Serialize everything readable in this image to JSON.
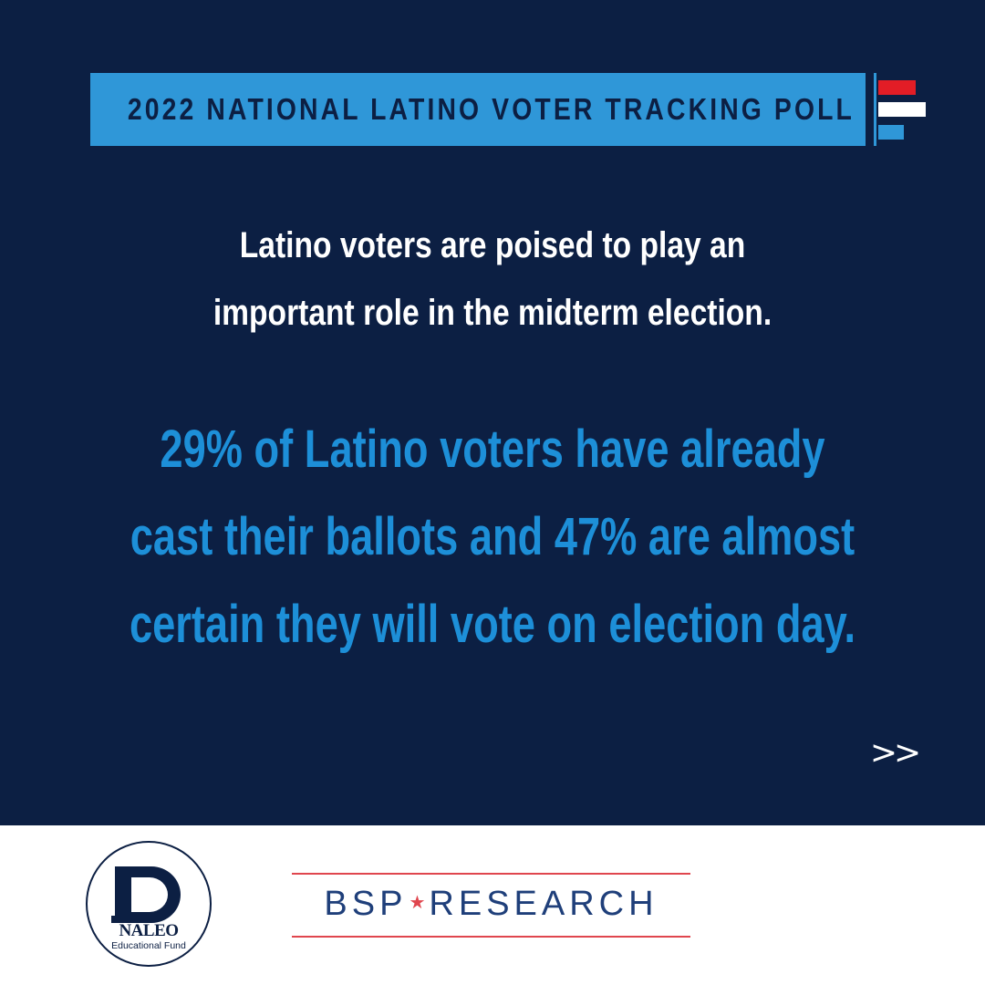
{
  "banner": {
    "title": "2022 NATIONAL LATINO VOTER TRACKING POLL"
  },
  "subhead": {
    "lines": [
      "Latino voters are poised to play an",
      "important role in the midterm election."
    ]
  },
  "stat": {
    "lines": [
      "29% of Latino voters have already",
      "cast their ballots and 47% are almost",
      "certain they will vote on election day."
    ]
  },
  "nav": {
    "next_label": ">>"
  },
  "logos": {
    "naleo_name": "NALEO",
    "naleo_sub": "Educational Fund",
    "bsp_left": "BSP",
    "bsp_star": "★",
    "bsp_right": "RESEARCH"
  },
  "colors": {
    "navy": "#0c1f43",
    "accent_blue": "#2f97d8",
    "stat_blue": "#1d8fd8",
    "red": "#e21d26",
    "white": "#ffffff"
  }
}
